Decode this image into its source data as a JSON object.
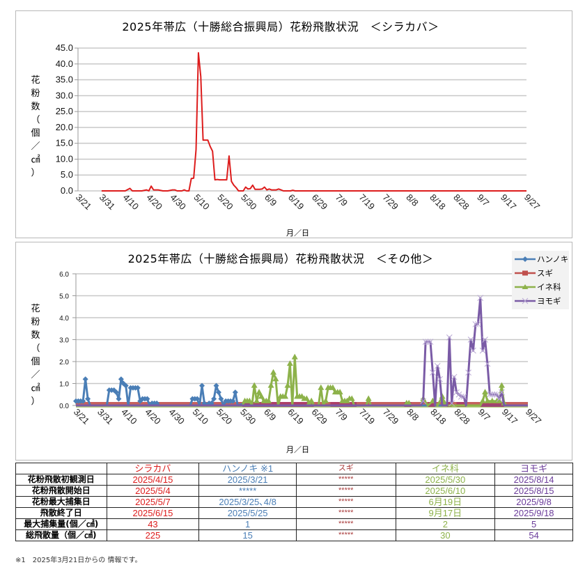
{
  "charts": {
    "shirakaba": {
      "title": "2025年帯広（十勝総合振興局）花粉飛散状況　＜シラカバ＞",
      "ylabel": "花粉数（個／㎠）",
      "xlabel": "月／日"
    },
    "others": {
      "title": "2025年帯広（十勝総合振興局）花粉飛散状況　＜その他＞",
      "ylabel": "花粉数（個／㎠）",
      "xlabel": "月／日",
      "legend": [
        "ハンノキ",
        "スギ",
        "イネ科",
        "ヨモギ"
      ]
    }
  },
  "chart_data": [
    {
      "type": "line",
      "title": "2025年帯広（十勝総合振興局）花粉飛散状況　＜シラカバ＞",
      "xlabel": "月／日",
      "ylabel": "花粉数（個／㎠）",
      "ylim": [
        0,
        45
      ],
      "yticks": [
        "0.0",
        "5.0",
        "10.0",
        "15.0",
        "20.0",
        "25.0",
        "30.0",
        "35.0",
        "40.0",
        "45.0"
      ],
      "xticks": [
        "3/21",
        "3/31",
        "4/10",
        "4/20",
        "4/30",
        "5/10",
        "5/20",
        "5/30",
        "6/9",
        "6/19",
        "6/29",
        "7/9",
        "7/19",
        "7/29",
        "8/8",
        "8/18",
        "8/28",
        "9/7",
        "9/17",
        "9/27"
      ],
      "grid": true,
      "start_date": "3/21",
      "series": [
        {
          "name": "シラカバ",
          "color": "#dd1c1c",
          "points": [
            [
              10,
              0
            ],
            [
              20,
              0
            ],
            [
              22,
              0.8
            ],
            [
              23,
              0
            ],
            [
              27,
              0
            ],
            [
              29,
              0.3
            ],
            [
              30,
              0
            ],
            [
              31,
              1.5
            ],
            [
              32,
              0.3
            ],
            [
              34,
              0.3
            ],
            [
              36,
              0
            ],
            [
              38,
              0
            ],
            [
              40,
              0.3
            ],
            [
              41,
              0.3
            ],
            [
              42,
              0
            ],
            [
              44,
              0
            ],
            [
              45,
              0.3
            ],
            [
              46,
              0
            ],
            [
              47,
              0
            ],
            [
              48,
              3.9
            ],
            [
              49,
              4
            ],
            [
              50,
              13
            ],
            [
              51,
              43.5
            ],
            [
              52,
              36
            ],
            [
              53,
              16
            ],
            [
              54,
              16
            ],
            [
              55,
              16
            ],
            [
              56,
              14
            ],
            [
              57,
              12.5
            ],
            [
              58,
              3.5
            ],
            [
              59,
              3.6
            ],
            [
              60,
              3.5
            ],
            [
              61,
              3.5
            ],
            [
              62,
              3.5
            ],
            [
              63,
              3.5
            ],
            [
              64,
              11
            ],
            [
              65,
              3
            ],
            [
              66,
              1.8
            ],
            [
              67,
              1
            ],
            [
              68,
              0
            ],
            [
              70,
              0
            ],
            [
              71,
              1.2
            ],
            [
              72,
              0.6
            ],
            [
              73,
              0.7
            ],
            [
              74,
              1.8
            ],
            [
              75,
              0.5
            ],
            [
              77,
              0.5
            ],
            [
              78,
              0.6
            ],
            [
              79,
              1.2
            ],
            [
              80,
              0.3
            ],
            [
              81,
              0.6
            ],
            [
              82,
              0.3
            ],
            [
              84,
              0.3
            ],
            [
              85,
              0.6
            ],
            [
              86,
              0.3
            ],
            [
              87,
              0
            ],
            [
              90,
              0
            ],
            [
              91,
              0.2
            ],
            [
              92,
              0
            ],
            [
              190,
              0
            ]
          ]
        }
      ]
    },
    {
      "type": "line",
      "title": "2025年帯広（十勝総合振興局）花粉飛散状況　＜その他＞",
      "xlabel": "月／日",
      "ylabel": "花粉数（個／㎠）",
      "ylim": [
        0,
        6
      ],
      "yticks": [
        "0.0",
        "1.0",
        "2.0",
        "3.0",
        "4.0",
        "5.0",
        "6.0"
      ],
      "xticks": [
        "3/21",
        "3/31",
        "4/10",
        "4/20",
        "4/30",
        "5/10",
        "5/20",
        "5/30",
        "6/9",
        "6/19",
        "6/29",
        "7/9",
        "7/19",
        "7/29",
        "8/8",
        "8/18",
        "8/28",
        "9/7",
        "9/17",
        "9/27"
      ],
      "grid": true,
      "legend_position": "top-right",
      "start_date": "3/21",
      "series": [
        {
          "name": "ハンノキ",
          "color": "#4a7eb6",
          "marker": "diamond",
          "points": [
            [
              0,
              0.2
            ],
            [
              1,
              0.2
            ],
            [
              2,
              0.2
            ],
            [
              3,
              0.2
            ],
            [
              4,
              1.2
            ],
            [
              5,
              0.3
            ],
            [
              6,
              0
            ],
            [
              13,
              0
            ],
            [
              14,
              0.7
            ],
            [
              15,
              0.7
            ],
            [
              16,
              0.7
            ],
            [
              17,
              0.6
            ],
            [
              18,
              0.3
            ],
            [
              19,
              1.2
            ],
            [
              20,
              1.0
            ],
            [
              21,
              0.9
            ],
            [
              22,
              0
            ],
            [
              23,
              0.8
            ],
            [
              24,
              0.8
            ],
            [
              25,
              0.8
            ],
            [
              26,
              0.8
            ],
            [
              27,
              0.2
            ],
            [
              28,
              0.3
            ],
            [
              29,
              0.3
            ],
            [
              30,
              0.3
            ],
            [
              31,
              0
            ],
            [
              32,
              0.1
            ],
            [
              33,
              0.1
            ],
            [
              34,
              0.1
            ],
            [
              35,
              0
            ],
            [
              48,
              0
            ],
            [
              49,
              0.3
            ],
            [
              50,
              0.3
            ],
            [
              51,
              0.3
            ],
            [
              52,
              0
            ],
            [
              53,
              0.9
            ],
            [
              54,
              0.1
            ],
            [
              55,
              0
            ],
            [
              56,
              0.1
            ],
            [
              57,
              0.1
            ],
            [
              58,
              0.3
            ],
            [
              59,
              0.9
            ],
            [
              60,
              0.6
            ],
            [
              61,
              0.3
            ],
            [
              62,
              0
            ],
            [
              63,
              0.2
            ],
            [
              64,
              0.2
            ],
            [
              65,
              0.2
            ],
            [
              66,
              0.2
            ],
            [
              67,
              0.6
            ],
            [
              68,
              0
            ],
            [
              71,
              0.1
            ],
            [
              72,
              0.1
            ],
            [
              73,
              0.1
            ],
            [
              74,
              0
            ],
            [
              190,
              0
            ]
          ]
        },
        {
          "name": "スギ",
          "color": "#c0504d",
          "marker": "square",
          "points": [
            [
              0,
              0
            ],
            [
              190,
              0
            ]
          ]
        },
        {
          "name": "イネ科",
          "color": "#8db24a",
          "marker": "triangle",
          "points": [
            [
              0,
              0
            ],
            [
              70,
              0
            ],
            [
              71,
              0.2
            ],
            [
              72,
              0.2
            ],
            [
              73,
              0.2
            ],
            [
              74,
              0
            ],
            [
              75,
              0.9
            ],
            [
              76,
              0.2
            ],
            [
              77,
              0.6
            ],
            [
              78,
              0.4
            ],
            [
              79,
              0.2
            ],
            [
              80,
              0.2
            ],
            [
              81,
              0.2
            ],
            [
              82,
              0.9
            ],
            [
              83,
              1.5
            ],
            [
              84,
              1.2
            ],
            [
              85,
              0
            ],
            [
              86,
              0.4
            ],
            [
              87,
              0.4
            ],
            [
              88,
              0.4
            ],
            [
              89,
              0.9
            ],
            [
              90,
              1.9
            ],
            [
              91,
              0
            ],
            [
              92,
              2.2
            ],
            [
              93,
              0.4
            ],
            [
              94,
              0.4
            ],
            [
              95,
              0.4
            ],
            [
              96,
              0.3
            ],
            [
              97,
              0.3
            ],
            [
              98,
              0.1
            ],
            [
              99,
              0.2
            ],
            [
              100,
              0
            ],
            [
              102,
              0
            ],
            [
              103,
              0.8
            ],
            [
              104,
              0
            ],
            [
              105,
              0.2
            ],
            [
              106,
              0.8
            ],
            [
              107,
              0.8
            ],
            [
              108,
              0.8
            ],
            [
              109,
              0.6
            ],
            [
              110,
              0.6
            ],
            [
              111,
              0.6
            ],
            [
              112,
              0.2
            ],
            [
              113,
              0.2
            ],
            [
              114,
              0.2
            ],
            [
              115,
              0.3
            ],
            [
              116,
              0.3
            ],
            [
              117,
              0
            ],
            [
              122,
              0
            ],
            [
              123,
              0.3
            ],
            [
              124,
              0
            ],
            [
              138,
              0
            ],
            [
              139,
              0.1
            ],
            [
              140,
              0.1
            ],
            [
              141,
              0
            ],
            [
              145,
              0
            ],
            [
              146,
              0.3
            ],
            [
              148,
              0
            ],
            [
              150,
              0.2
            ],
            [
              152,
              0
            ],
            [
              154,
              0.4
            ],
            [
              155,
              0.1
            ],
            [
              156,
              0
            ],
            [
              170,
              0
            ],
            [
              171,
              0.2
            ],
            [
              172,
              0.6
            ],
            [
              173,
              0.2
            ],
            [
              175,
              0.2
            ],
            [
              177,
              0.2
            ],
            [
              178,
              0.2
            ],
            [
              179,
              0.9
            ],
            [
              180,
              0.1
            ],
            [
              181,
              0
            ],
            [
              190,
              0
            ]
          ]
        },
        {
          "name": "ヨモギ",
          "color": "#7a5ba6",
          "marker": "x",
          "points": [
            [
              0,
              0
            ],
            [
              145,
              0
            ],
            [
              146,
              0.2
            ],
            [
              147,
              2.9
            ],
            [
              148,
              2.9
            ],
            [
              149,
              2.9
            ],
            [
              150,
              1.5
            ],
            [
              151,
              0
            ],
            [
              152,
              1.8
            ],
            [
              153,
              1.2
            ],
            [
              154,
              0
            ],
            [
              155,
              0
            ],
            [
              156,
              0
            ],
            [
              157,
              3.1
            ],
            [
              158,
              0.1
            ],
            [
              159,
              1.3
            ],
            [
              160,
              0.6
            ],
            [
              161,
              0.5
            ],
            [
              162,
              0.4
            ],
            [
              163,
              0.4
            ],
            [
              164,
              0
            ],
            [
              165,
              1.5
            ],
            [
              166,
              3.0
            ],
            [
              167,
              2.5
            ],
            [
              168,
              3.7
            ],
            [
              169,
              3.7
            ],
            [
              170,
              4.9
            ],
            [
              171,
              2.5
            ],
            [
              172,
              3.0
            ],
            [
              173,
              1.9
            ],
            [
              174,
              0.5
            ],
            [
              175,
              0.5
            ],
            [
              176,
              0.5
            ],
            [
              177,
              0.5
            ],
            [
              178,
              0.3
            ],
            [
              179,
              0.6
            ],
            [
              180,
              0
            ],
            [
              190,
              0
            ]
          ]
        }
      ]
    },
    {
      "type": "table",
      "columns": [
        "",
        "シラカバ",
        "ハンノキ ※1",
        "スギ",
        "イネ科",
        "ヨモギ"
      ],
      "rows": [
        [
          "花粉飛散初観測日",
          "2025/4/15",
          "2025/3/21",
          "*****",
          "2025/5/30",
          "2025/8/14"
        ],
        [
          "花粉飛散開始日",
          "2025/5/4",
          "*****",
          "*****",
          "2025/6/10",
          "2025/8/15"
        ],
        [
          "花粉最大捕集日",
          "2025/5/7",
          "2025/3/25, 4/8",
          "*****",
          "6月19日",
          "2025/9/8"
        ],
        [
          "飛散終了日",
          "2025/6/15",
          "2025/5/25",
          "*****",
          "9月17日",
          "2025/9/18"
        ],
        [
          "最大捕集量(個／㎠)",
          "43",
          "1",
          "*****",
          "2",
          "5"
        ],
        [
          "総飛散量（個／㎠)",
          "225",
          "15",
          "*****",
          "30",
          "54"
        ]
      ]
    }
  ],
  "table": {
    "headers": [
      "",
      "シラカバ",
      "ハンノキ ※1",
      "スギ",
      "イネ科",
      "ヨモギ"
    ],
    "rows": [
      [
        "花粉飛散初観測日",
        "2025/4/15",
        "2025/3/21",
        "*****",
        "2025/5/30",
        "2025/8/14"
      ],
      [
        "花粉飛散開始日",
        "2025/5/4",
        "*****",
        "*****",
        "2025/6/10",
        "2025/8/15"
      ],
      [
        "花粉最大捕集日",
        "2025/5/7",
        "2025/3/25､4/8",
        "*****",
        "6月19日",
        "2025/9/8"
      ],
      [
        "飛散終了日",
        "2025/6/15",
        "2025/5/25",
        "*****",
        "9月17日",
        "2025/9/18"
      ],
      [
        "最大捕集量(個／㎠)",
        "43",
        "1",
        "*****",
        "2",
        "5"
      ],
      [
        "総飛散量（個／㎠)",
        "225",
        "15",
        "*****",
        "30",
        "54"
      ]
    ]
  },
  "footnote": "※1　2025年3月21日からの 情報です。",
  "colors": {
    "shirakaba": "#dd1c1c",
    "hannoki": "#4a7eb6",
    "sugi": "#c0504d",
    "ine": "#8db24a",
    "yomogi": "#7a5ba6",
    "grid": "#c8c8c8"
  }
}
